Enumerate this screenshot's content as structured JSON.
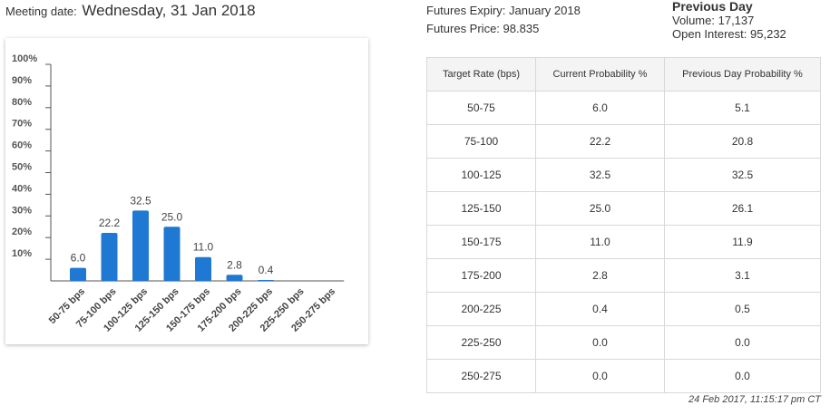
{
  "meeting": {
    "label": "Meeting date:",
    "date": "Wednesday, 31 Jan 2018"
  },
  "futures": {
    "expiry_label": "Futures Expiry:",
    "expiry": "January 2018",
    "price_label": "Futures Price:",
    "price": "98.835"
  },
  "previous_day": {
    "title": "Previous Day",
    "volume_label": "Volume:",
    "volume": "17,137",
    "oi_label": "Open Interest:",
    "oi": "95,232"
  },
  "table": {
    "headers": [
      "Target Rate (bps)",
      "Current Probability %",
      "Previous Day Probability %"
    ],
    "rows": [
      [
        "50-75",
        "6.0",
        "5.1"
      ],
      [
        "75-100",
        "22.2",
        "20.8"
      ],
      [
        "100-125",
        "32.5",
        "32.5"
      ],
      [
        "125-150",
        "25.0",
        "26.1"
      ],
      [
        "150-175",
        "11.0",
        "11.9"
      ],
      [
        "175-200",
        "2.8",
        "3.1"
      ],
      [
        "200-225",
        "0.4",
        "0.5"
      ],
      [
        "225-250",
        "0.0",
        "0.0"
      ],
      [
        "250-275",
        "0.0",
        "0.0"
      ]
    ]
  },
  "timestamp": "24 Feb 2017, 11:15:17 pm CT",
  "colors": {
    "bar": "#1f78d1",
    "axis": "#555555"
  },
  "chart_data": {
    "type": "bar",
    "categories": [
      "50-75 bps",
      "75-100 bps",
      "100-125 bps",
      "125-150 bps",
      "150-175 bps",
      "175-200 bps",
      "200-225 bps",
      "225-250 bps",
      "250-275 bps"
    ],
    "values": [
      6.0,
      22.2,
      32.5,
      25.0,
      11.0,
      2.8,
      0.4,
      0.0,
      0.0
    ],
    "data_labels": [
      "6.0",
      "22.2",
      "32.5",
      "25.0",
      "11.0",
      "2.8",
      "0.4",
      "",
      ""
    ],
    "ylim": [
      0,
      100
    ],
    "yticks": [
      "10%",
      "20%",
      "30%",
      "40%",
      "50%",
      "60%",
      "70%",
      "80%",
      "90%",
      "100%"
    ],
    "ytick_values": [
      10,
      20,
      30,
      40,
      50,
      60,
      70,
      80,
      90,
      100
    ],
    "grid": false,
    "legend": "none"
  }
}
